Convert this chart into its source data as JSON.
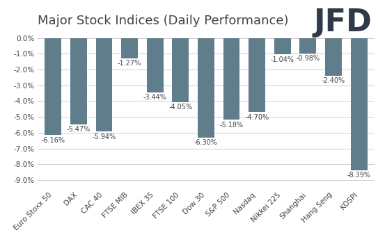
{
  "title": "Major Stock Indices (Daily Performance)",
  "categories": [
    "Euro Stoxx 50",
    "DAX",
    "CAC 40",
    "FTSE MIB",
    "IBEX 35",
    "FTSE 100",
    "Dow 30",
    "S&P 500",
    "Nasdaq",
    "Nikkei 225",
    "Shanghai",
    "Hang Seng",
    "KOSPI"
  ],
  "values": [
    -6.16,
    -5.47,
    -5.94,
    -1.27,
    -3.44,
    -4.05,
    -6.3,
    -5.18,
    -4.7,
    -1.04,
    -0.98,
    -2.4,
    -8.39
  ],
  "labels": [
    "-6.16%",
    "-5.47%",
    "-5.94%",
    "-1.27%",
    "-3.44%",
    "-4.05%",
    "-6.30%",
    "-5.18%",
    "-4.70%",
    "-1.04%",
    "-0.98%",
    "-2.40%",
    "-8.39%"
  ],
  "bar_color": "#607d8b",
  "background_color": "#ffffff",
  "grid_color": "#cccccc",
  "text_color": "#444444",
  "ylim": [
    -9.5,
    0.4
  ],
  "yticks": [
    0.0,
    -1.0,
    -2.0,
    -3.0,
    -4.0,
    -5.0,
    -6.0,
    -7.0,
    -8.0,
    -9.0
  ],
  "ytick_labels": [
    "0.0%",
    "-1.0%",
    "-2.0%",
    "-3.0%",
    "-4.0%",
    "-5.0%",
    "-6.0%",
    "-7.0%",
    "-8.0%",
    "-9.0%"
  ],
  "title_fontsize": 13,
  "tick_fontsize": 7.5,
  "label_fontsize": 7,
  "logo_text": "JFD",
  "logo_color": "#2e3a47",
  "logo_fontsize": 32
}
